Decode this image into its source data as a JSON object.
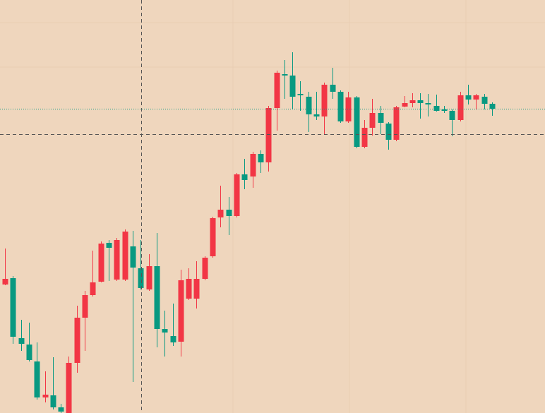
{
  "chart_data": {
    "type": "candlestick",
    "open": [
      182,
      191,
      106,
      97,
      73,
      22,
      25,
      8,
      0,
      71,
      135,
      167,
      186,
      241,
      189,
      189,
      236,
      205,
      175,
      208,
      119,
      109,
      101,
      162,
      162,
      190,
      222,
      277,
      288,
      279,
      338,
      335,
      367,
      355,
      432,
      480,
      478,
      452,
      448,
      423,
      420,
      465,
      455,
      413,
      447,
      377,
      404,
      425,
      410,
      387,
      434,
      439,
      443,
      439,
      435,
      430,
      428,
      415,
      450,
      444,
      448,
      438
    ],
    "high": [
      233,
      194,
      132,
      128,
      100,
      59,
      79,
      13,
      80,
      152,
      173,
      230,
      243,
      245,
      248,
      260,
      258,
      245,
      225,
      255,
      145,
      155,
      203,
      205,
      215,
      222,
      278,
      322,
      306,
      340,
      360,
      370,
      372,
      435,
      485,
      500,
      511,
      470,
      455,
      455,
      468,
      489,
      457,
      455,
      449,
      415,
      445,
      435,
      412,
      435,
      449,
      453,
      453,
      452,
      451,
      435,
      430,
      455,
      465,
      452,
      452,
      440
    ],
    "low": [
      181,
      98,
      88,
      73,
      19,
      15,
      5,
      0,
      0,
      57,
      88,
      165,
      185,
      187,
      187,
      187,
      44,
      175,
      173,
      93,
      80,
      95,
      80,
      160,
      148,
      188,
      220,
      263,
      252,
      277,
      317,
      319,
      340,
      342,
      400,
      445,
      430,
      428,
      398,
      415,
      395,
      445,
      411,
      411,
      375,
      375,
      393,
      395,
      373,
      385,
      433,
      433,
      417,
      420,
      427,
      425,
      392,
      413,
      437,
      430,
      430,
      421
    ],
    "close": [
      190,
      108,
      98,
      75,
      22,
      26,
      8,
      2,
      71,
      135,
      167,
      185,
      240,
      234,
      245,
      257,
      206,
      177,
      208,
      119,
      114,
      100,
      188,
      190,
      190,
      220,
      276,
      288,
      279,
      338,
      330,
      367,
      355,
      432,
      482,
      478,
      448,
      450,
      423,
      420,
      465,
      455,
      413,
      447,
      377,
      404,
      425,
      411,
      387,
      433,
      439,
      443,
      439,
      437,
      428,
      428,
      415,
      450,
      444,
      450,
      438,
      431
    ],
    "up_color": "#f23645",
    "down_color": "#089981",
    "last_price": 431,
    "ylim": [
      0,
      585
    ]
  }
}
